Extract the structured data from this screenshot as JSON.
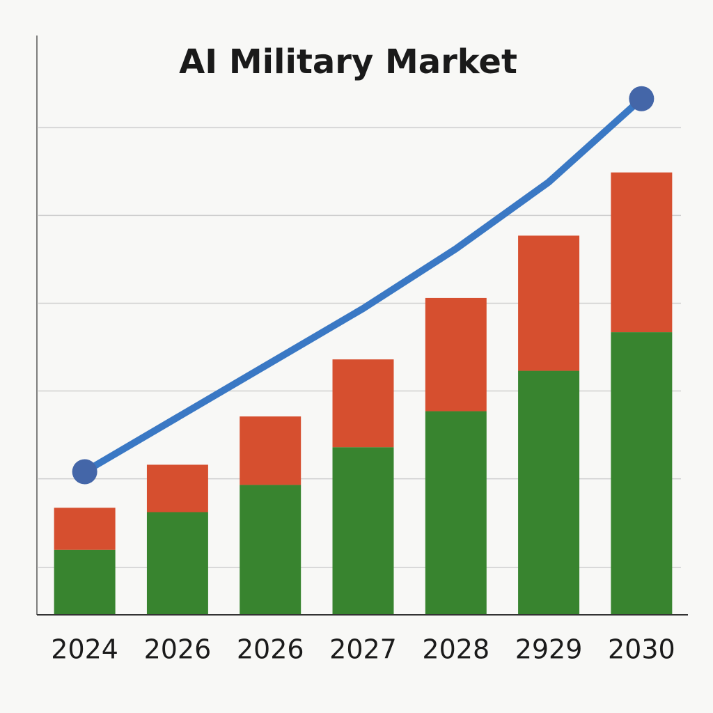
{
  "chart_data": {
    "type": "stacked_bar_line",
    "title": "AI Military Market",
    "categories": [
      "2024",
      "2026",
      "2026",
      "2027",
      "2028",
      "2929",
      "2030"
    ],
    "series": [
      {
        "color": "#38842f",
        "values": [
          74,
          117,
          148,
          191,
          232,
          278,
          322
        ]
      },
      {
        "color": "#d64f2f",
        "values": [
          48,
          54,
          78,
          100,
          129,
          154,
          182
        ]
      }
    ],
    "line": {
      "color": "#3a78c4",
      "marker_color": "#4466a8",
      "values": [
        163,
        225,
        287,
        349,
        417,
        493,
        588
      ]
    },
    "ylim": [
      0,
      660
    ],
    "yticks": [
      54,
      155,
      255,
      355,
      455,
      555
    ],
    "grid": true
  }
}
